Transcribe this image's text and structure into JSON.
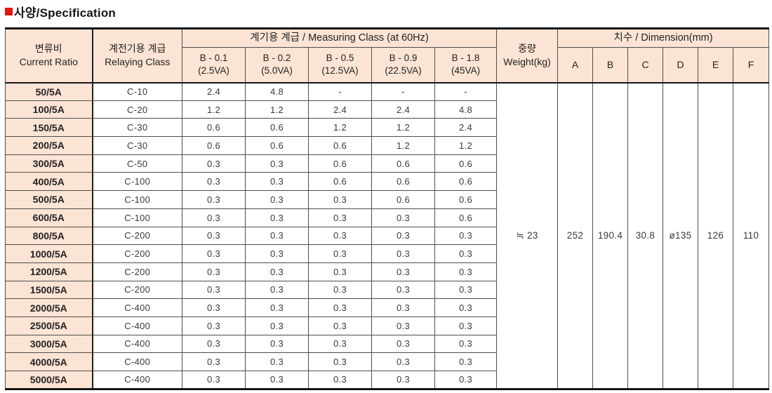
{
  "section": {
    "title": "사양/Specification",
    "accent_color": "#e8150c",
    "header_bg_color": "#fce4d4"
  },
  "table": {
    "headers": {
      "current_ratio_ko": "변류비",
      "current_ratio_en": "Current Ratio",
      "relaying_class_ko": "계전기용 계급",
      "relaying_class_en": "Relaying Class",
      "measuring_class": "계기용 계급 / Measuring Class (at 60Hz)",
      "measuring_subcolumns": [
        {
          "class": "B - 0.1",
          "burden": "(2.5VA)"
        },
        {
          "class": "B - 0.2",
          "burden": "(5.0VA)"
        },
        {
          "class": "B - 0.5",
          "burden": "(12.5VA)"
        },
        {
          "class": "B - 0.9",
          "burden": "(22.5VA)"
        },
        {
          "class": "B - 1.8",
          "burden": "(45VA)"
        }
      ],
      "weight_ko": "중량",
      "weight_en": "Weight(kg)",
      "dimension": "치수 / Dimension(mm)",
      "dimension_subcolumns": [
        "A",
        "B",
        "C",
        "D",
        "E",
        "F"
      ]
    },
    "rows": [
      {
        "ratio": "50/5A",
        "relaying_class": "C-10",
        "measuring": [
          "2.4",
          "4.8",
          "-",
          "-",
          "-"
        ]
      },
      {
        "ratio": "100/5A",
        "relaying_class": "C-20",
        "measuring": [
          "1.2",
          "1.2",
          "2.4",
          "2.4",
          "4.8"
        ]
      },
      {
        "ratio": "150/5A",
        "relaying_class": "C-30",
        "measuring": [
          "0.6",
          "0.6",
          "1.2",
          "1.2",
          "2.4"
        ]
      },
      {
        "ratio": "200/5A",
        "relaying_class": "C-30",
        "measuring": [
          "0.6",
          "0.6",
          "0.6",
          "1.2",
          "1.2"
        ]
      },
      {
        "ratio": "300/5A",
        "relaying_class": "C-50",
        "measuring": [
          "0.3",
          "0.3",
          "0.6",
          "0.6",
          "0.6"
        ]
      },
      {
        "ratio": "400/5A",
        "relaying_class": "C-100",
        "measuring": [
          "0.3",
          "0.3",
          "0.6",
          "0.6",
          "0.6"
        ]
      },
      {
        "ratio": "500/5A",
        "relaying_class": "C-100",
        "measuring": [
          "0.3",
          "0.3",
          "0.3",
          "0.6",
          "0.6"
        ]
      },
      {
        "ratio": "600/5A",
        "relaying_class": "C-100",
        "measuring": [
          "0.3",
          "0.3",
          "0.3",
          "0.3",
          "0.6"
        ]
      },
      {
        "ratio": "800/5A",
        "relaying_class": "C-200",
        "measuring": [
          "0.3",
          "0.3",
          "0.3",
          "0.3",
          "0.3"
        ]
      },
      {
        "ratio": "1000/5A",
        "relaying_class": "C-200",
        "measuring": [
          "0.3",
          "0.3",
          "0.3",
          "0.3",
          "0.3"
        ]
      },
      {
        "ratio": "1200/5A",
        "relaying_class": "C-200",
        "measuring": [
          "0.3",
          "0.3",
          "0.3",
          "0.3",
          "0.3"
        ]
      },
      {
        "ratio": "1500/5A",
        "relaying_class": "C-200",
        "measuring": [
          "0.3",
          "0.3",
          "0.3",
          "0.3",
          "0.3"
        ]
      },
      {
        "ratio": "2000/5A",
        "relaying_class": "C-400",
        "measuring": [
          "0.3",
          "0.3",
          "0.3",
          "0.3",
          "0.3"
        ]
      },
      {
        "ratio": "2500/5A",
        "relaying_class": "C-400",
        "measuring": [
          "0.3",
          "0.3",
          "0.3",
          "0.3",
          "0.3"
        ]
      },
      {
        "ratio": "3000/5A",
        "relaying_class": "C-400",
        "measuring": [
          "0.3",
          "0.3",
          "0.3",
          "0.3",
          "0.3"
        ]
      },
      {
        "ratio": "4000/5A",
        "relaying_class": "C-400",
        "measuring": [
          "0.3",
          "0.3",
          "0.3",
          "0.3",
          "0.3"
        ]
      },
      {
        "ratio": "5000/5A",
        "relaying_class": "C-400",
        "measuring": [
          "0.3",
          "0.3",
          "0.3",
          "0.3",
          "0.3"
        ]
      }
    ],
    "weight_value": "≒ 23",
    "dimension_values": [
      "252",
      "190.4",
      "30.8",
      "ø135",
      "126",
      "110"
    ]
  }
}
